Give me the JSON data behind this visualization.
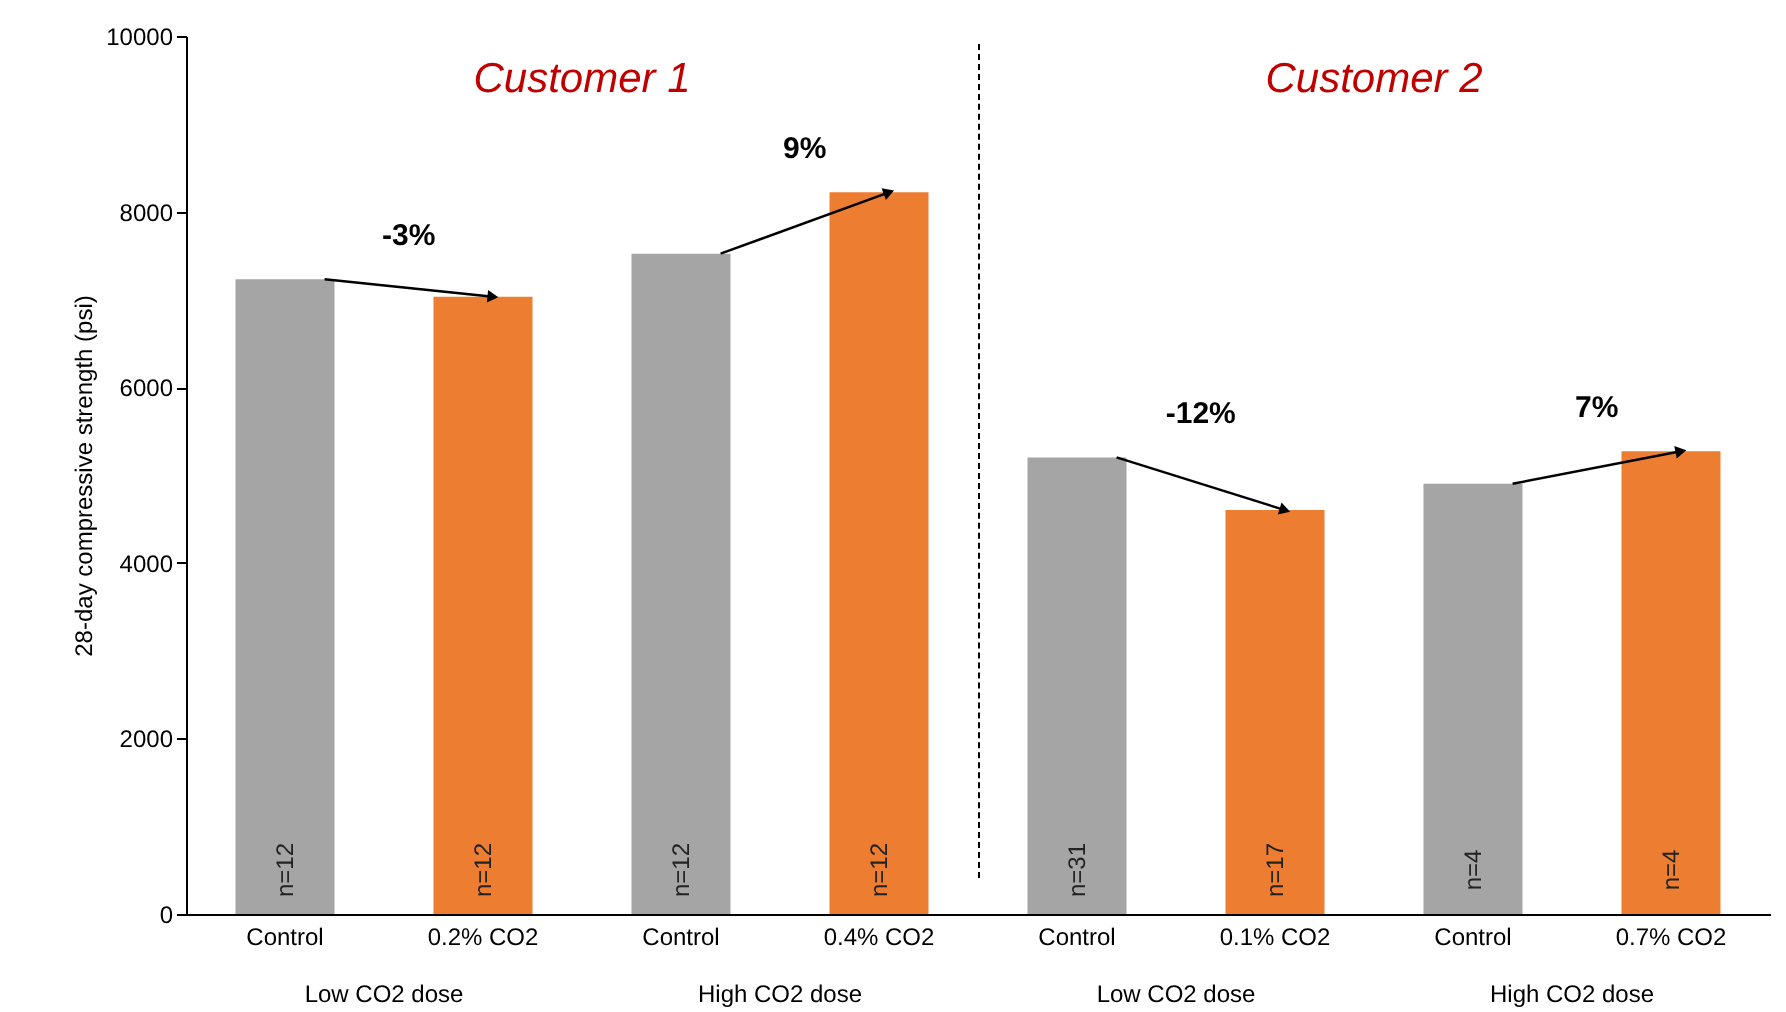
{
  "chart_data": {
    "type": "bar",
    "ylabel": "28-day compressive strength (psi)",
    "categories": [
      "Control",
      "0.2% CO2",
      "Control",
      "0.4% CO2",
      "Control",
      "0.1% CO2",
      "Control",
      "0.7% CO2"
    ],
    "values": [
      7230,
      7030,
      7520,
      8220,
      5200,
      4600,
      4900,
      5270
    ],
    "colors": [
      "#a5a5a5",
      "#ed7d31",
      "#a5a5a5",
      "#ed7d31",
      "#a5a5a5",
      "#ed7d31",
      "#a5a5a5",
      "#ed7d31"
    ],
    "ylim": [
      0,
      10000
    ],
    "yticks": [
      0,
      2000,
      4000,
      6000,
      8000,
      10000
    ],
    "annotations": [
      "Customer 1",
      "Customer 2",
      "-3%",
      "9%",
      "-12%",
      "7%",
      "n=12",
      "n=12",
      "n=12",
      "n=12",
      "n=31",
      "n=17",
      "n=4",
      "n=4",
      "Low CO2 dose",
      "High CO2 dose",
      "Low CO2 dose",
      "High CO2 dose"
    ]
  }
}
